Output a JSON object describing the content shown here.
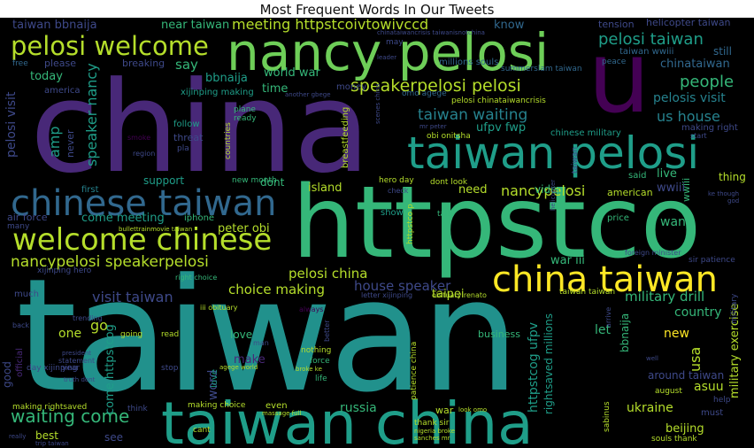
{
  "title": "Most Frequent Words In Our Tweets",
  "colors": {
    "background": "#000000",
    "purple": "#482878",
    "dark_purple": "#440154",
    "teal": "#1f9e89",
    "dark_teal": "#26828e",
    "blue": "#31688e",
    "slate": "#3e4989",
    "green": "#35b779",
    "lime": "#6ece58",
    "yellow": "#fde725",
    "yellow_green": "#b5de2b",
    "main_cyan": "#21918c"
  },
  "words": {
    "taiwan": "taiwan",
    "china": "china",
    "httpstco": "httpstco",
    "taiwan_china": "taiwan china",
    "nancy_pelosi": "nancy pelosi",
    "taiwan_pelosi": "taiwan pelosi",
    "u": "u",
    "chinese_taiwan": "chinese taiwan",
    "welcome_chinese": "welcome chinese",
    "china_taiwan": "china taiwan",
    "pelosi_welcome": "pelosi welcome",
    "taiwan_bbnaija": "taiwan bbnaija",
    "near_taiwan": "near taiwan",
    "meeting_httpstcoivtowivccd": "meeting httpstcoivtowivccd",
    "know": "know",
    "tension": "tension",
    "helicopter_taiwan": "helicopter taiwan",
    "pelosi_taiwan": "pelosi taiwan",
    "taiwan_wwiii": "taiwan wwiii",
    "still": "still",
    "chinataiwan": "chinataiwan",
    "world_war": "world war",
    "millions_souls": "millions souls",
    "summerslam_taiwan": "summerslam taiwan",
    "peace": "peace",
    "please": "please",
    "breaking": "breaking",
    "say": "say",
    "today": "today",
    "bbnaija": "bbnaija",
    "time": "time",
    "speakerpelosi_pelosi": "speakerpelosi pelosi",
    "america": "america",
    "xijinping_making": "xijinping making",
    "money": "money",
    "people": "people",
    "pelosis_visit": "pelosis visit",
    "pelosi_chinataiwancrisis": "pelosi chinataiwancrisis",
    "amp": "amp",
    "speaker_nancy": "speaker nancy",
    "taiwan_waiting": "taiwan waiting",
    "us_house": "us house",
    "ufpv_fwp": "ufpv fwp",
    "chinese_military": "chinese military",
    "pelosi_visit": "pelosi visit",
    "making_right": "making right",
    "follow": "follow",
    "never": "never",
    "threat": "threat",
    "plane": "plane",
    "ready": "ready",
    "countries": "countries",
    "obi_onitsha": "obi onitsha",
    "breastfeeding": "breastfeeding",
    "start": "start",
    "support": "support",
    "new_month": "new month",
    "dont": "dont",
    "nancypelosi": "nancypelosi",
    "live": "live",
    "said": "said",
    "thing": "thing",
    "island": "island",
    "need": "need",
    "hero_day": "hero day",
    "dont_look": "dont look",
    "video": "video",
    "american": "american",
    "wwiii": "wwiii",
    "first": "first",
    "air_force": "air force",
    "come_meeting": "come meeting",
    "iphone": "iphone",
    "show": "show",
    "talk": "talk",
    "price": "price",
    "want": "want",
    "many": "many",
    "bullettrainmovie_taiwan": "bullettrainmovie taiwan",
    "peter_obi": "peter obi",
    "nancypelosi_speakerpelosi": "nancypelosi speakerpelosi",
    "pelosi_china": "pelosi china",
    "taipei": "taipei",
    "war_iii": "war iii",
    "foreign_minister": "foreign minister",
    "sir_patience": "sir patience",
    "visit_taiwan": "visit taiwan",
    "xijinping_hero": "xijinping hero",
    "right_choice": "right choice",
    "choice_making": "choice making",
    "house_speaker": "house speaker",
    "military_drill": "military drill",
    "taiwan_taiwan": "taiwan taiwan",
    "much": "much",
    "letter_xijinping": "letter xijinping",
    "obituary_renato": "obituary renato",
    "country": "country",
    "trending": "trending",
    "go": "go",
    "come_httpstcog": "come httpstcog",
    "iii_obituary": "iii obituary",
    "always": "always",
    "one": "one",
    "going": "going",
    "read": "read",
    "love": "love",
    "let": "let",
    "business": "business",
    "new": "new",
    "usa": "usa",
    "back": "back",
    "make": "make",
    "good": "good",
    "man": "man",
    "nothing": "nothing",
    "bbnaija_two": "bbnaija",
    "military_exercise": "military exercise",
    "president": "president",
    "statement": "statement",
    "force": "force",
    "official": "official",
    "stop": "stop",
    "broke_ke": "broke ke",
    "well": "well",
    "around_taiwan": "around taiwan",
    "day_xijinping": "day xijinping",
    "year": "year",
    "truth_dont": "truth dont",
    "agege_world": "agege world",
    "life": "life",
    "asuu": "asuu",
    "august": "august",
    "patience_china": "patience china",
    "rightsaved_millions": "rightsaved millions",
    "help": "help",
    "making_rightsaved": "making rightsaved",
    "think": "think",
    "making_choice": "making choice",
    "even": "even",
    "russia": "russia",
    "massage_full": "massage full",
    "war": "war",
    "look_omo": "look omo",
    "ukraine": "ukraine",
    "sabinus": "sabinus",
    "must": "must",
    "best": "best",
    "cant": "cant",
    "thank_sir": "thank sir",
    "nigeria_broke": "nigeria broke",
    "beijing": "beijing",
    "really": "really",
    "see": "see",
    "sanches_mr": "sanches mr",
    "trip_taiwan": "trip taiwan",
    "souls_thank": "souls thank",
    "waiting_come": "waiting come",
    "word": "word",
    "httpstcog_ufpv": "httpstcog ufpv",
    "near": "near",
    "free": "free",
    "leader": "leader",
    "may": "may",
    "omo_agege": "omo agege",
    "another_gbege": "another gbege",
    "speaker": "speaker",
    "httpstco_p": "httpstco p",
    "mr_peter": "mr peter",
    "region": "region",
    "pla": "pla",
    "smoke": "smoke",
    "ke_though": "ke though",
    "god": "god",
    "check": "check",
    "helicopter": "helicopter",
    "though_funny": "though funny",
    "chinataiwancrisis": "chinataiwancrisis taiwanisnotchina",
    "military": "military",
    "better": "better",
    "arrive": "arrive",
    "scenes_china": "scenes china",
    "taiwan_small": "taiwan"
  }
}
